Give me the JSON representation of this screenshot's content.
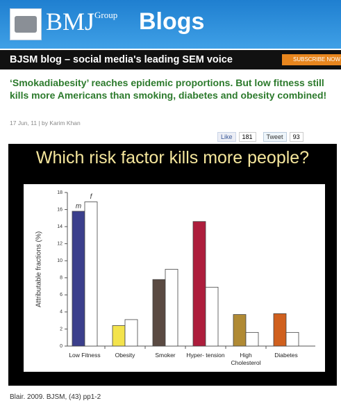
{
  "header": {
    "logo": "BMJ",
    "logo_sup": "Group",
    "section": "Blogs"
  },
  "nav": {
    "title": "BJSM blog – social media's leading SEM voice",
    "subscribe": "SUBSCRIBE NOW"
  },
  "article": {
    "title": "‘Smokadiabesity’ reaches epidemic proportions. But low fitness still kills more Americans than smoking, diabetes and obesity combined!",
    "meta": "17 Jun, 11 | by Karim Khan",
    "like": "Like",
    "like_count": 181,
    "tweet": "Tweet",
    "tweet_count": 93
  },
  "figure": {
    "heading": "Which risk factor kills more people?",
    "caption": "Blair. 2009. BJSM, (43) pp1-2"
  },
  "chart_data": {
    "type": "bar",
    "y_label": "Attributable fractions (%)",
    "categories": [
      "Low Fitness",
      "Obesity",
      "Smoker",
      "Hyper- tension",
      "High Cholesterol",
      "Diabetes"
    ],
    "series": [
      {
        "name": "m",
        "colors": [
          "#3b3f8c",
          "#f3e34c",
          "#5a4a42",
          "#ad1d3c",
          "#b08a34",
          "#d0601e"
        ],
        "values": [
          15.8,
          2.4,
          7.8,
          14.6,
          3.7,
          3.8
        ]
      },
      {
        "name": "f",
        "color": "#ffffff",
        "values": [
          16.9,
          3.1,
          9.0,
          6.9,
          1.6,
          1.6
        ]
      }
    ],
    "ylim": [
      0,
      18
    ],
    "yticks": [
      0,
      2,
      4,
      6,
      8,
      10,
      12,
      14,
      16,
      18
    ]
  }
}
